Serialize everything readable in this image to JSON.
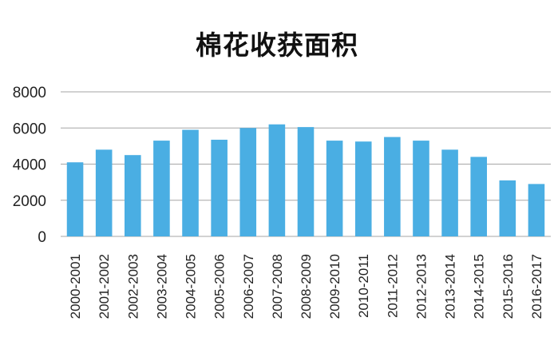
{
  "chart_data": {
    "type": "bar",
    "title": "棉花收获面积",
    "xlabel": "",
    "ylabel": "",
    "ylim": [
      0,
      8000
    ],
    "yticks": [
      "0",
      "2000",
      "4000",
      "6000",
      "8000"
    ],
    "grid": true,
    "categories": [
      "2000-2001",
      "2001-2002",
      "2002-2003",
      "2003-2004",
      "2004-2005",
      "2005-2006",
      "2006-2007",
      "2007-2008",
      "2008-2009",
      "2009-2010",
      "2010-2011",
      "2011-2012",
      "2012-2013",
      "2013-2014",
      "2014-2015",
      "2015-2016",
      "2016-2017"
    ],
    "values": [
      4100,
      4800,
      4500,
      5300,
      5900,
      5350,
      6000,
      6200,
      6050,
      5300,
      5250,
      5500,
      5300,
      4800,
      4400,
      3100,
      2900
    ],
    "bar_color": "#4aaee3",
    "grid_color": "#a6a6a6"
  }
}
